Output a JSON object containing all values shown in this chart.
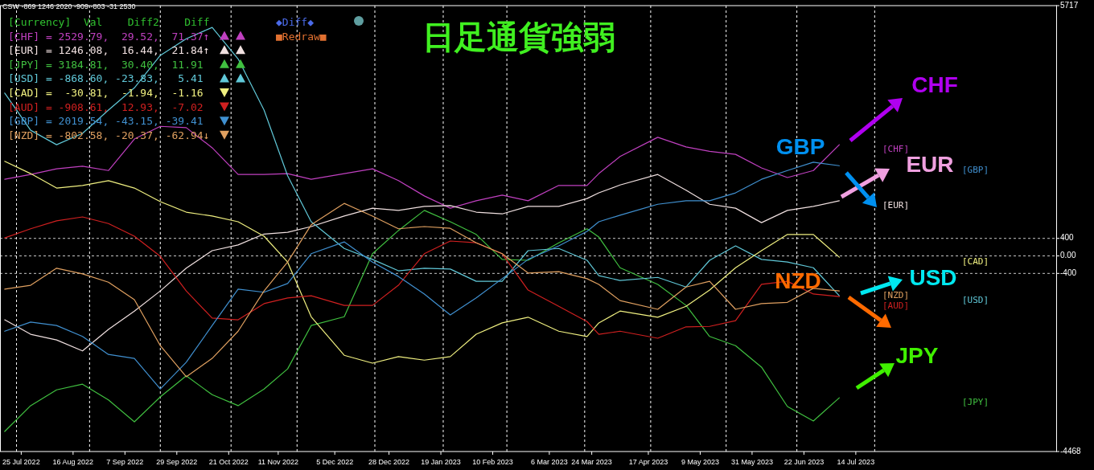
{
  "chart_data": {
    "type": "line",
    "title": "日足通貨強弱",
    "subtitle": "CSW -869 1246 2020 -909 -803 -31 2530",
    "x": [
      "2022-07-18",
      "2022-07-29",
      "2022-08-09",
      "2022-08-20",
      "2022-08-31",
      "2022-09-11",
      "2022-09-22",
      "2022-10-03",
      "2022-10-14",
      "2022-10-25",
      "2022-11-05",
      "2022-11-15",
      "2022-11-25",
      "2022-12-09",
      "2022-12-21",
      "2023-01-01",
      "2023-01-12",
      "2023-01-23",
      "2023-02-03",
      "2023-02-14",
      "2023-02-25",
      "2023-03-10",
      "2023-03-22",
      "2023-03-27",
      "2023-04-05",
      "2023-04-21",
      "2023-05-03",
      "2023-05-13",
      "2023-05-24",
      "2023-06-04",
      "2023-06-15",
      "2023-06-26",
      "2023-07-07"
    ],
    "xlim": [
      "2022-07-16",
      "2023-10-07"
    ],
    "xticks": [
      {
        "value": "2022-07-25",
        "label": "25 Jul 2022"
      },
      {
        "value": "2022-08-16",
        "label": "16 Aug 2022"
      },
      {
        "value": "2022-09-07",
        "label": "7 Sep 2022"
      },
      {
        "value": "2022-09-29",
        "label": "29 Sep 2022"
      },
      {
        "value": "2022-10-21",
        "label": "21 Oct 2022"
      },
      {
        "value": "2022-11-11",
        "label": "11 Nov 2022"
      },
      {
        "value": "2022-12-05",
        "label": "5 Dec 2022"
      },
      {
        "value": "2022-12-28",
        "label": "28 Dec 2022"
      },
      {
        "value": "2023-01-19",
        "label": "19 Jan 2023"
      },
      {
        "value": "2023-02-10",
        "label": "10 Feb 2023"
      },
      {
        "value": "2023-03-06",
        "label": "6 Mar 2023"
      },
      {
        "value": "2023-03-24",
        "label": "24 Mar 2023"
      },
      {
        "value": "2023-04-17",
        "label": "17 Apr 2023"
      },
      {
        "value": "2023-05-09",
        "label": "9 May 2023"
      },
      {
        "value": "2023-05-31",
        "label": "31 May 2023"
      },
      {
        "value": "2023-06-22",
        "label": "22 Jun 2023"
      },
      {
        "value": "2023-07-14",
        "label": "14 Jul 2023"
      }
    ],
    "ylim": [
      -4468,
      5717
    ],
    "yticks": [
      5717,
      400,
      {
        "value": 0,
        "label": "0.00"
      },
      -400,
      -4468
    ],
    "series": [
      {
        "name": "[CHF]",
        "color": "#c040c0",
        "values": [
          1750,
          1860,
          1990,
          2050,
          1950,
          2670,
          2960,
          2930,
          2470,
          1860,
          1860,
          1880,
          1750,
          1880,
          1990,
          1720,
          1370,
          1090,
          1260,
          1390,
          1260,
          1610,
          1610,
          1880,
          2270,
          2710,
          2490,
          2390,
          2320,
          2010,
          1790,
          1950,
          2540
        ]
      },
      {
        "name": "[EUR]",
        "color": "#f0e0e0",
        "values": [
          -1460,
          -1790,
          -1920,
          -2170,
          -1680,
          -1260,
          -800,
          -280,
          120,
          250,
          500,
          540,
          670,
          910,
          1090,
          1040,
          1130,
          1150,
          1000,
          960,
          1130,
          1130,
          1310,
          1440,
          1620,
          1860,
          1500,
          1180,
          1090,
          760,
          1040,
          1130,
          1260
        ]
      },
      {
        "name": "[JPY]",
        "color": "#40c040",
        "values": [
          -4010,
          -3420,
          -3060,
          -2930,
          -3290,
          -3790,
          -3220,
          -2740,
          -3170,
          -3420,
          -3040,
          -2580,
          -1590,
          -1390,
          50,
          580,
          1040,
          780,
          490,
          -80,
          -100,
          300,
          620,
          430,
          -270,
          -650,
          -1130,
          -1840,
          -2050,
          -2540,
          -3440,
          -3770,
          -3240
        ]
      },
      {
        "name": "[USD]",
        "color": "#60c8d8",
        "values": [
          3720,
          2870,
          2540,
          2800,
          3330,
          3840,
          4580,
          4960,
          5220,
          4500,
          3330,
          1830,
          780,
          170,
          -80,
          -340,
          -280,
          -300,
          -580,
          -580,
          120,
          170,
          -100,
          -450,
          -560,
          -490,
          -710,
          -100,
          230,
          -80,
          -140,
          -270,
          -910
        ]
      },
      {
        "name": "[CAD]",
        "color": "#f0f080",
        "values": [
          2160,
          1880,
          1550,
          1610,
          1720,
          1550,
          1240,
          1000,
          910,
          780,
          450,
          -140,
          -1390,
          -2270,
          -2450,
          -2300,
          -2380,
          -2300,
          -1790,
          -1530,
          -1400,
          -1720,
          -1840,
          -1530,
          -1260,
          -1400,
          -1150,
          -780,
          -270,
          120,
          490,
          490,
          -30
        ]
      },
      {
        "name": "[AUD]",
        "color": "#d02020",
        "values": [
          410,
          620,
          800,
          890,
          740,
          450,
          -10,
          -800,
          -1420,
          -1460,
          -1090,
          -960,
          -910,
          -1130,
          -1130,
          -670,
          50,
          340,
          300,
          50,
          -780,
          -1150,
          -1500,
          -1790,
          -1720,
          -1880,
          -1620,
          -1610,
          -1480,
          -650,
          -580,
          -870,
          -930
        ]
      },
      {
        "name": "[GBP]",
        "color": "#4090d0",
        "values": [
          -1720,
          -1510,
          -1590,
          -1840,
          -2250,
          -2340,
          -3040,
          -2430,
          -1590,
          -760,
          -830,
          -630,
          50,
          320,
          -140,
          -470,
          -870,
          -1350,
          -960,
          -520,
          -80,
          230,
          560,
          780,
          930,
          1180,
          1260,
          1260,
          1440,
          1750,
          1950,
          2140,
          2060
        ]
      },
      {
        "name": "[NZD]",
        "color": "#e0a060",
        "values": [
          -760,
          -670,
          -280,
          -410,
          -600,
          -1000,
          -2050,
          -2760,
          -2340,
          -1720,
          -800,
          -140,
          710,
          1200,
          910,
          620,
          670,
          630,
          300,
          50,
          -390,
          -360,
          -520,
          -650,
          -1020,
          -1220,
          -710,
          -580,
          -1220,
          -1090,
          -1060,
          -740,
          -800
        ]
      }
    ],
    "ref_lines": [
      {
        "axis": "y",
        "value": 400,
        "color": "#c8c8c8",
        "line_style": "dashed"
      },
      {
        "axis": "y",
        "value": 0,
        "color": "#c8c8c8",
        "line_style": "dashed"
      },
      {
        "axis": "y",
        "value": -400,
        "color": "#c8c8c8",
        "line_style": "dashed"
      },
      {
        "axis": "x",
        "value": "2022-07-23",
        "color": "#ffffff",
        "line_style": "dashed"
      },
      {
        "axis": "x",
        "value": "2022-08-23",
        "color": "#ffffff",
        "line_style": "dashed"
      },
      {
        "axis": "x",
        "value": "2022-09-22",
        "color": "#ffffff",
        "line_style": "dashed"
      },
      {
        "axis": "x",
        "value": "2022-10-22",
        "color": "#ffffff",
        "line_style": "dashed"
      },
      {
        "axis": "x",
        "value": "2022-11-19",
        "color": "#ffffff",
        "line_style": "dashed"
      },
      {
        "axis": "x",
        "value": "2022-12-22",
        "color": "#ffffff",
        "line_style": "dashed"
      },
      {
        "axis": "x",
        "value": "2023-01-20",
        "color": "#ffffff",
        "line_style": "dashed"
      },
      {
        "axis": "x",
        "value": "2023-02-16",
        "color": "#ffffff",
        "line_style": "dashed"
      },
      {
        "axis": "x",
        "value": "2023-03-21",
        "color": "#ffffff",
        "line_style": "dashed"
      },
      {
        "axis": "x",
        "value": "2023-04-18",
        "color": "#ffffff",
        "line_style": "dashed"
      },
      {
        "axis": "x",
        "value": "2023-05-20",
        "color": "#ffffff",
        "line_style": "dashed"
      },
      {
        "axis": "x",
        "value": "2023-06-19",
        "color": "#ffffff",
        "line_style": "dashed"
      },
      {
        "axis": "x",
        "value": "2023-07-22",
        "color": "#ffffff",
        "line_style": "dashed"
      }
    ],
    "annotations": [
      "[Currency]  Val    Diff2    Diff",
      "[CHF] = 2529.79,  29.52,  71.37↑",
      "[EUR] = 1246.08,  16.44,  21.84↑",
      "[JPY] = 3184.81,  30.40,  11.91",
      "[USD] = -868.60, -23.83,   5.41",
      "[CAD] =  -30.81,  -1.94,  -1.16",
      "[AUD] = -908.61,  12.93,  -7.02",
      "[GBP] = 2019.54, -43.15, -39.41",
      "[NZD] = -802.58, -20.37, -62.94↓",
      "◆Diff◆",
      "■Redraw■",
      "CHF",
      "EUR",
      "GBP",
      "USD",
      "NZD",
      "JPY"
    ]
  }
}
